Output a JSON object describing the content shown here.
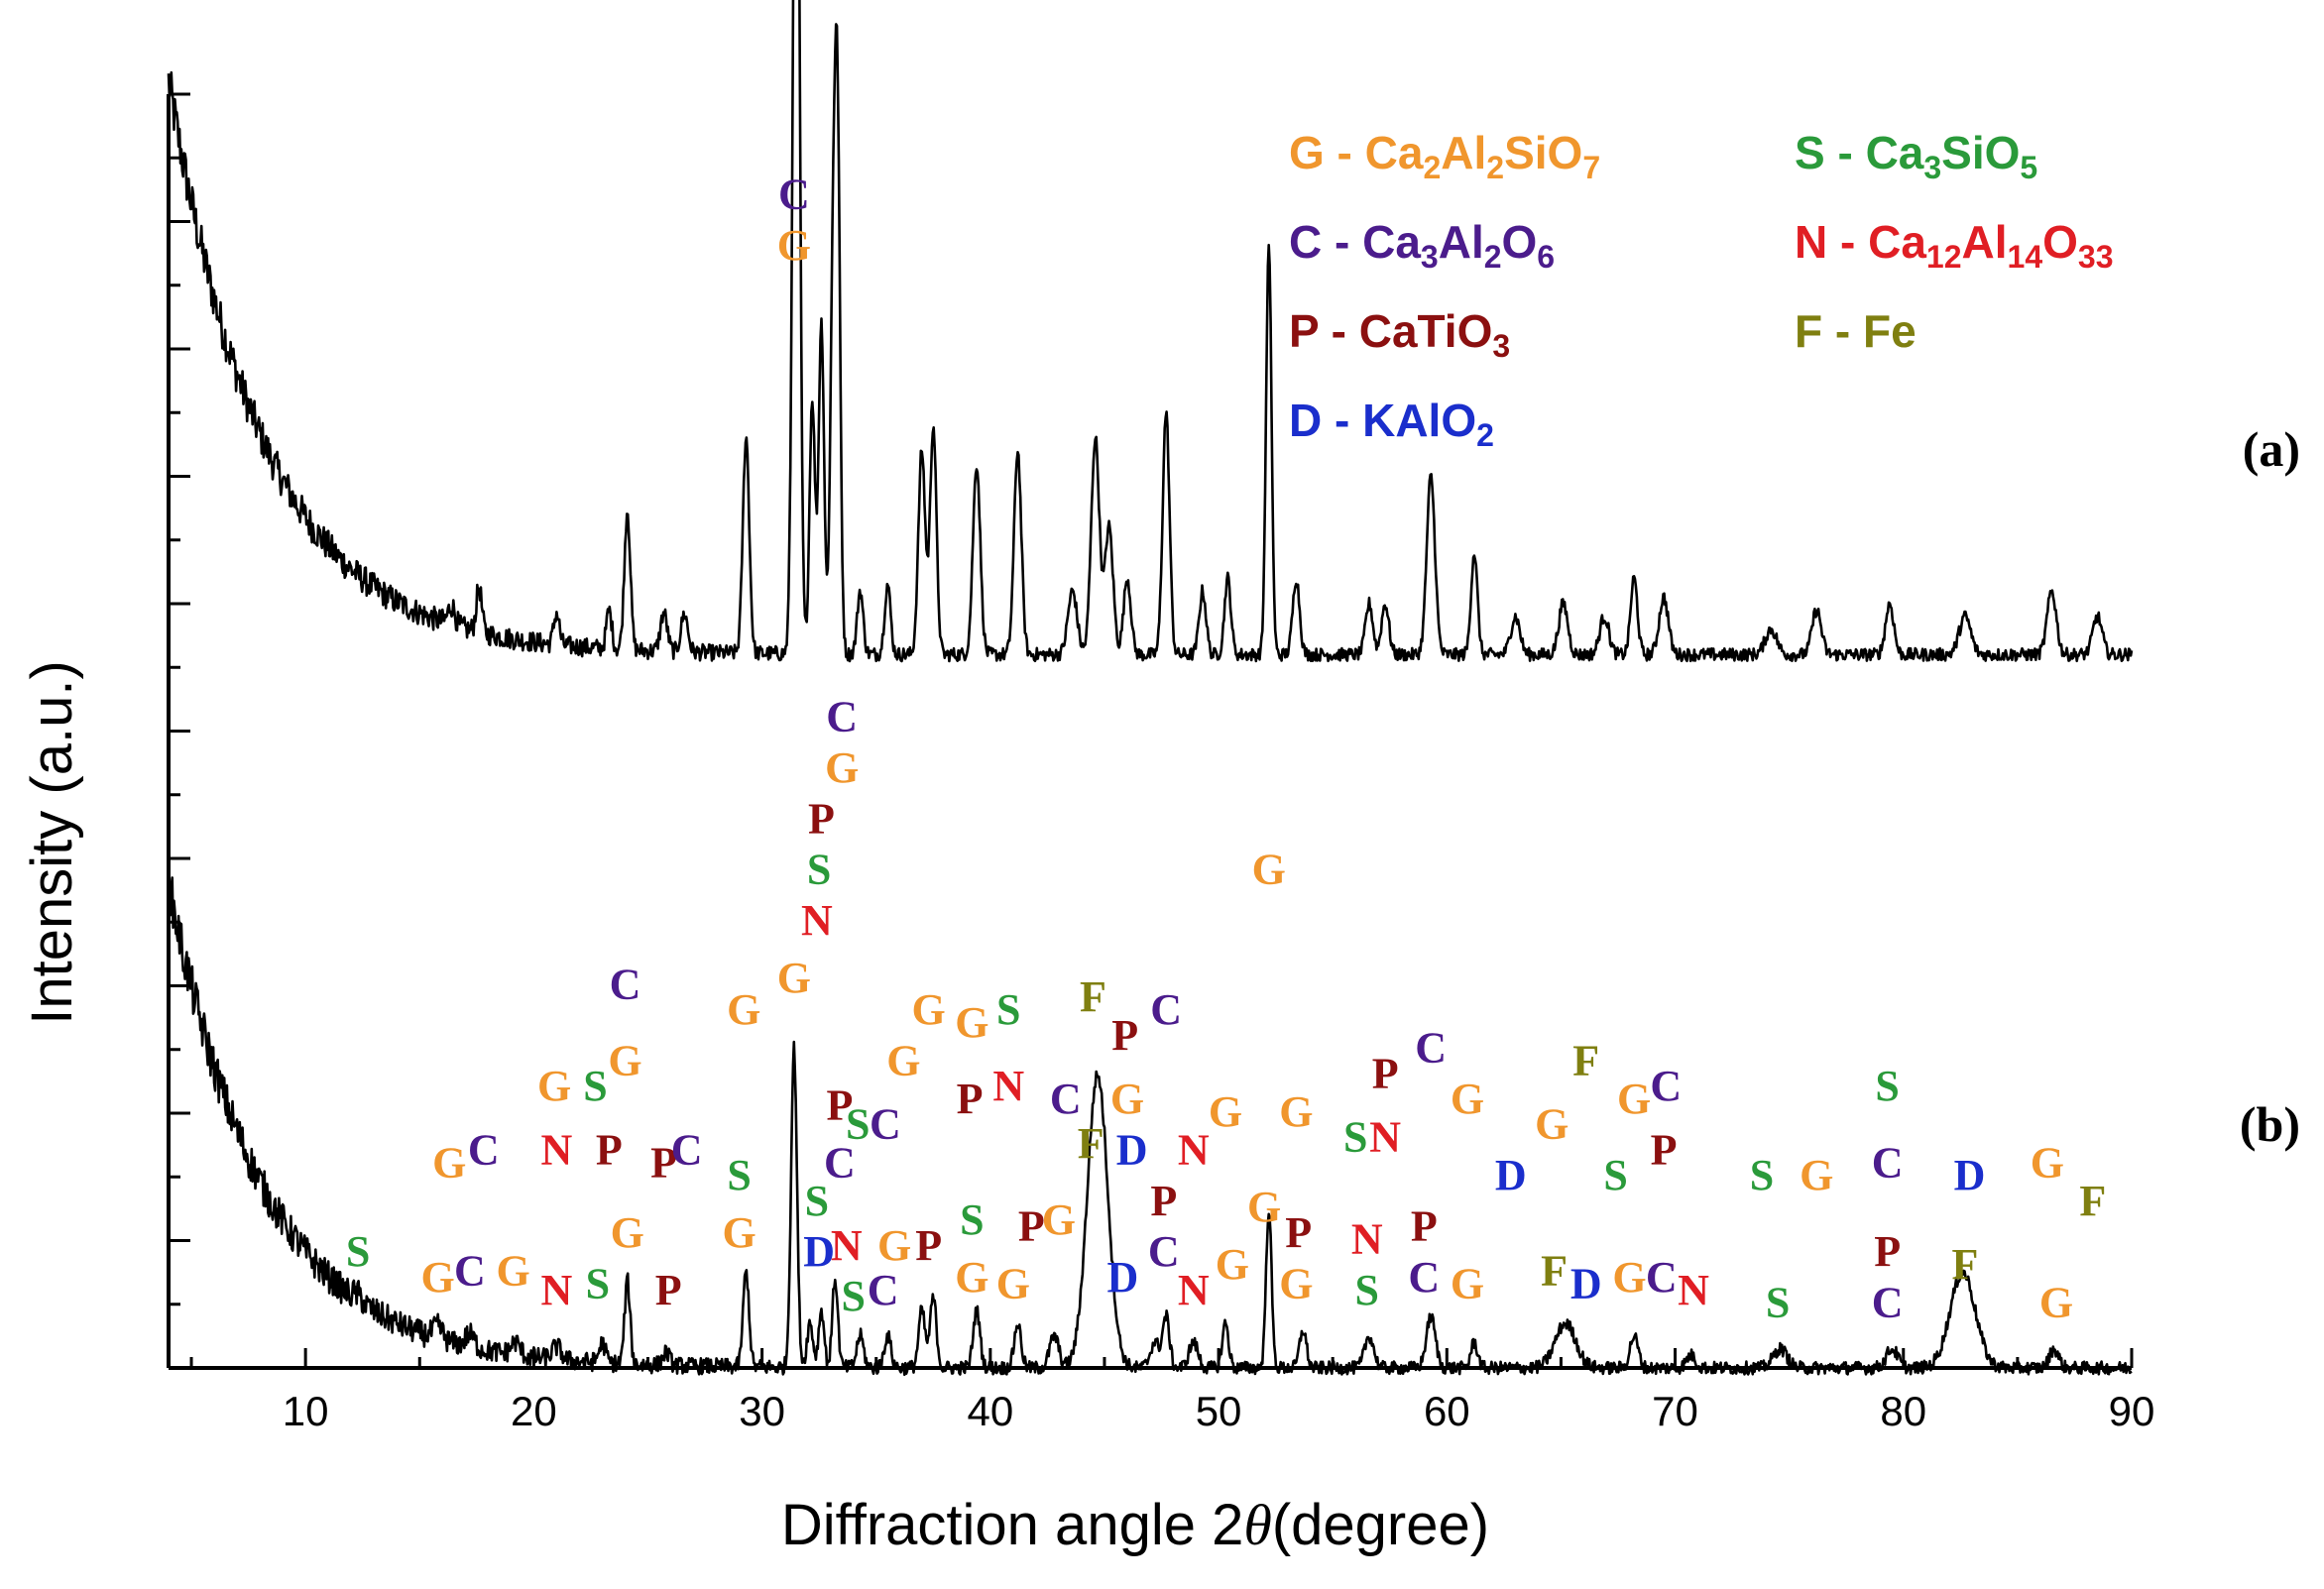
{
  "chart_data": {
    "type": "line",
    "title": "",
    "xlabel": "Diffraction angle 2θ (degree)",
    "xlabel_parts": {
      "prefix": "Diffraction angle 2",
      "theta": "θ",
      "suffix": "(degree)"
    },
    "ylabel": "Intensity (a.u.)",
    "xlim": [
      4,
      90
    ],
    "x_ticks": [
      10,
      20,
      30,
      40,
      50,
      60,
      70,
      80,
      90
    ],
    "y_ticks_labeled": false,
    "grid": false,
    "legend": {
      "placement": "top-right",
      "entries": [
        {
          "code": "G",
          "sep": " - ",
          "parts": [
            [
              "Ca",
              ""
            ],
            [
              "2",
              "sub"
            ],
            [
              "Al",
              ""
            ],
            [
              "2",
              "sub"
            ],
            [
              "SiO",
              ""
            ],
            [
              "7",
              "sub"
            ]
          ],
          "color": "#F0962D"
        },
        {
          "code": "S",
          "sep": " - ",
          "parts": [
            [
              "Ca",
              ""
            ],
            [
              "3",
              "sub"
            ],
            [
              "SiO",
              ""
            ],
            [
              "5",
              "sub"
            ]
          ],
          "color": "#2A9A3A"
        },
        {
          "code": "C",
          "sep": " - ",
          "parts": [
            [
              "Ca",
              ""
            ],
            [
              "3",
              "sub"
            ],
            [
              "Al",
              ""
            ],
            [
              "2",
              "sub"
            ],
            [
              "O",
              ""
            ],
            [
              "6",
              "sub"
            ]
          ],
          "color": "#4B1C8C"
        },
        {
          "code": "N",
          "sep": " - ",
          "parts": [
            [
              "Ca",
              ""
            ],
            [
              "12",
              "sub"
            ],
            [
              "Al",
              ""
            ],
            [
              "14",
              "sub"
            ],
            [
              "O",
              ""
            ],
            [
              "33",
              "sub"
            ]
          ],
          "color": "#E01E24"
        },
        {
          "code": "P",
          "sep": " - ",
          "parts": [
            [
              "CaTiO",
              ""
            ],
            [
              "3",
              "sub"
            ]
          ],
          "color": "#8B1010"
        },
        {
          "code": "F",
          "sep": " - ",
          "parts": [
            [
              "Fe",
              ""
            ]
          ],
          "color": "#7F7F10"
        },
        {
          "code": "D",
          "sep": " - ",
          "parts": [
            [
              "KAlO",
              ""
            ],
            [
              "2",
              "sub"
            ]
          ],
          "color": "#1A2ECC"
        }
      ]
    },
    "colors": {
      "G": "#F0962D",
      "S": "#2A9A3A",
      "C": "#4B1C8C",
      "N": "#E01E24",
      "P": "#8B1010",
      "F": "#7F7F10",
      "D": "#1A2ECC"
    },
    "series": [
      {
        "name": "(a)",
        "baseline": 0.6,
        "offset": 5.0,
        "start_rise": 4.5,
        "peaks": [
          [
            16.4,
            0.15,
            0.15
          ],
          [
            17.6,
            0.35,
            0.12
          ],
          [
            21.0,
            0.25,
            0.12
          ],
          [
            23.3,
            0.3,
            0.12
          ],
          [
            24.1,
            1.1,
            0.13
          ],
          [
            25.7,
            0.3,
            0.15
          ],
          [
            26.6,
            0.3,
            0.15
          ],
          [
            29.3,
            1.7,
            0.14
          ],
          [
            31.5,
            8.4,
            0.14
          ],
          [
            32.2,
            2.0,
            0.12
          ],
          [
            32.6,
            2.6,
            0.12
          ],
          [
            33.1,
            2.6,
            0.12
          ],
          [
            33.3,
            4.1,
            0.12
          ],
          [
            34.3,
            0.5,
            0.13
          ],
          [
            35.5,
            0.55,
            0.13
          ],
          [
            37.0,
            1.6,
            0.15
          ],
          [
            37.5,
            1.8,
            0.14
          ],
          [
            39.4,
            1.5,
            0.16
          ],
          [
            41.2,
            1.6,
            0.16
          ],
          [
            43.6,
            0.5,
            0.2
          ],
          [
            44.6,
            1.7,
            0.18
          ],
          [
            45.2,
            1.0,
            0.18
          ],
          [
            46.0,
            0.6,
            0.16
          ],
          [
            47.7,
            1.9,
            0.15
          ],
          [
            49.3,
            0.5,
            0.15
          ],
          [
            50.4,
            0.6,
            0.14
          ],
          [
            52.2,
            3.2,
            0.12
          ],
          [
            53.4,
            0.6,
            0.15
          ],
          [
            56.6,
            0.4,
            0.16
          ],
          [
            57.3,
            0.4,
            0.16
          ],
          [
            59.3,
            1.4,
            0.18
          ],
          [
            61.2,
            0.8,
            0.14
          ],
          [
            63.0,
            0.3,
            0.2
          ],
          [
            65.1,
            0.4,
            0.2
          ],
          [
            66.9,
            0.3,
            0.2
          ],
          [
            68.2,
            0.6,
            0.15
          ],
          [
            69.5,
            0.45,
            0.2
          ],
          [
            74.2,
            0.2,
            0.25
          ],
          [
            76.2,
            0.35,
            0.2
          ],
          [
            79.4,
            0.4,
            0.18
          ],
          [
            82.7,
            0.3,
            0.25
          ],
          [
            86.5,
            0.5,
            0.2
          ],
          [
            88.5,
            0.3,
            0.2
          ]
        ]
      },
      {
        "name": "(b)",
        "baseline": 0.0,
        "offset": 0.0,
        "start_rise": 3.8,
        "peaks": [
          [
            12.3,
            0.05,
            0.2
          ],
          [
            15.8,
            0.1,
            0.2
          ],
          [
            17.2,
            0.1,
            0.2
          ],
          [
            19.2,
            0.1,
            0.2
          ],
          [
            21.0,
            0.1,
            0.2
          ],
          [
            23.0,
            0.15,
            0.15
          ],
          [
            24.1,
            0.65,
            0.12
          ],
          [
            25.8,
            0.1,
            0.15
          ],
          [
            29.3,
            0.75,
            0.13
          ],
          [
            31.4,
            2.5,
            0.13
          ],
          [
            32.1,
            0.35,
            0.13
          ],
          [
            32.6,
            0.45,
            0.12
          ],
          [
            33.2,
            0.7,
            0.12
          ],
          [
            34.3,
            0.25,
            0.15
          ],
          [
            35.5,
            0.25,
            0.15
          ],
          [
            37.0,
            0.45,
            0.14
          ],
          [
            37.5,
            0.55,
            0.14
          ],
          [
            39.4,
            0.45,
            0.15
          ],
          [
            41.2,
            0.35,
            0.15
          ],
          [
            42.8,
            0.25,
            0.2
          ],
          [
            44.7,
            2.3,
            0.45
          ],
          [
            47.2,
            0.2,
            0.2
          ],
          [
            47.7,
            0.4,
            0.15
          ],
          [
            48.9,
            0.2,
            0.2
          ],
          [
            50.3,
            0.35,
            0.14
          ],
          [
            52.2,
            1.25,
            0.12
          ],
          [
            53.7,
            0.3,
            0.15
          ],
          [
            56.6,
            0.25,
            0.2
          ],
          [
            59.3,
            0.4,
            0.2
          ],
          [
            61.2,
            0.2,
            0.15
          ],
          [
            65.2,
            0.35,
            0.45
          ],
          [
            68.2,
            0.25,
            0.18
          ],
          [
            70.7,
            0.1,
            0.2
          ],
          [
            74.6,
            0.15,
            0.3
          ],
          [
            79.5,
            0.15,
            0.25
          ],
          [
            82.6,
            0.75,
            0.55
          ],
          [
            86.6,
            0.15,
            0.2
          ]
        ]
      }
    ],
    "annotations": [
      {
        "x": 16.3,
        "y": 1.5,
        "t": "G"
      },
      {
        "x": 17.8,
        "y": 1.6,
        "t": "C"
      },
      {
        "x": 21.0,
        "y": 1.6,
        "t": "N"
      },
      {
        "x": 22.7,
        "y": 2.1,
        "t": "S"
      },
      {
        "x": 24.0,
        "y": 2.3,
        "t": "G"
      },
      {
        "x": 23.3,
        "y": 1.6,
        "t": "P"
      },
      {
        "x": 20.9,
        "y": 2.1,
        "t": "G"
      },
      {
        "x": 24.0,
        "y": 2.9,
        "t": "C"
      },
      {
        "x": 25.7,
        "y": 1.5,
        "t": "P"
      },
      {
        "x": 26.7,
        "y": 1.6,
        "t": "C"
      },
      {
        "x": 29.2,
        "y": 2.7,
        "t": "G"
      },
      {
        "x": 31.4,
        "y": 8.7,
        "t": "G"
      },
      {
        "x": 31.4,
        "y": 9.1,
        "t": "C"
      },
      {
        "x": 33.5,
        "y": 4.6,
        "t": "G"
      },
      {
        "x": 33.5,
        "y": 5.0,
        "t": "C"
      },
      {
        "x": 32.6,
        "y": 4.2,
        "t": "P"
      },
      {
        "x": 32.5,
        "y": 3.8,
        "t": "S"
      },
      {
        "x": 32.4,
        "y": 3.4,
        "t": "N"
      },
      {
        "x": 34.2,
        "y": 1.8,
        "t": "S"
      },
      {
        "x": 35.4,
        "y": 1.8,
        "t": "C"
      },
      {
        "x": 36.2,
        "y": 2.3,
        "t": "G"
      },
      {
        "x": 37.3,
        "y": 2.7,
        "t": "G"
      },
      {
        "x": 39.2,
        "y": 2.6,
        "t": "G"
      },
      {
        "x": 40.8,
        "y": 2.7,
        "t": "S"
      },
      {
        "x": 39.1,
        "y": 2.0,
        "t": "P"
      },
      {
        "x": 40.8,
        "y": 2.1,
        "t": "N"
      },
      {
        "x": 43.3,
        "y": 2.0,
        "t": "C"
      },
      {
        "x": 44.5,
        "y": 2.8,
        "t": "F"
      },
      {
        "x": 45.9,
        "y": 2.5,
        "t": "P"
      },
      {
        "x": 47.7,
        "y": 2.7,
        "t": "C"
      },
      {
        "x": 46.0,
        "y": 2.0,
        "t": "G"
      },
      {
        "x": 46.2,
        "y": 1.6,
        "t": "D"
      },
      {
        "x": 48.9,
        "y": 1.6,
        "t": "N"
      },
      {
        "x": 50.3,
        "y": 1.9,
        "t": "G"
      },
      {
        "x": 52.2,
        "y": 3.8,
        "t": "G"
      },
      {
        "x": 53.4,
        "y": 1.9,
        "t": "G"
      },
      {
        "x": 56.0,
        "y": 1.7,
        "t": "S"
      },
      {
        "x": 57.3,
        "y": 2.2,
        "t": "P"
      },
      {
        "x": 57.3,
        "y": 1.7,
        "t": "N"
      },
      {
        "x": 59.3,
        "y": 2.4,
        "t": "C"
      },
      {
        "x": 60.9,
        "y": 2.0,
        "t": "G"
      },
      {
        "x": 62.8,
        "y": 1.4,
        "t": "D"
      },
      {
        "x": 64.6,
        "y": 1.8,
        "t": "G"
      },
      {
        "x": 66.1,
        "y": 2.3,
        "t": "F"
      },
      {
        "x": 67.4,
        "y": 1.4,
        "t": "S"
      },
      {
        "x": 68.2,
        "y": 2.0,
        "t": "G"
      },
      {
        "x": 69.6,
        "y": 2.1,
        "t": "C"
      },
      {
        "x": 69.5,
        "y": 1.6,
        "t": "P"
      },
      {
        "x": 73.8,
        "y": 1.4,
        "t": "S"
      },
      {
        "x": 76.2,
        "y": 1.4,
        "t": "G"
      },
      {
        "x": 79.3,
        "y": 2.1,
        "t": "S"
      },
      {
        "x": 79.3,
        "y": 1.5,
        "t": "C"
      },
      {
        "x": 82.9,
        "y": 1.4,
        "t": "D"
      },
      {
        "x": 86.3,
        "y": 1.5,
        "t": "G"
      },
      {
        "x": 88.3,
        "y": 1.2,
        "t": "F"
      },
      {
        "x": 12.3,
        "y": 0.8,
        "t": "S"
      },
      {
        "x": 15.8,
        "y": 0.6,
        "t": "G"
      },
      {
        "x": 17.2,
        "y": 0.65,
        "t": "C"
      },
      {
        "x": 19.1,
        "y": 0.65,
        "t": "G"
      },
      {
        "x": 21.0,
        "y": 0.5,
        "t": "N"
      },
      {
        "x": 22.8,
        "y": 0.55,
        "t": "S"
      },
      {
        "x": 24.1,
        "y": 0.95,
        "t": "G"
      },
      {
        "x": 25.9,
        "y": 0.5,
        "t": "P"
      },
      {
        "x": 29.0,
        "y": 1.4,
        "t": "S"
      },
      {
        "x": 29.0,
        "y": 0.95,
        "t": "G"
      },
      {
        "x": 31.4,
        "y": 2.95,
        "t": "G"
      },
      {
        "x": 32.4,
        "y": 1.2,
        "t": "S"
      },
      {
        "x": 32.5,
        "y": 0.8,
        "t": "D"
      },
      {
        "x": 33.4,
        "y": 1.5,
        "t": "C"
      },
      {
        "x": 33.4,
        "y": 1.95,
        "t": "P"
      },
      {
        "x": 33.7,
        "y": 0.85,
        "t": "N"
      },
      {
        "x": 34.0,
        "y": 0.45,
        "t": "S"
      },
      {
        "x": 35.3,
        "y": 0.5,
        "t": "C"
      },
      {
        "x": 35.8,
        "y": 0.85,
        "t": "G"
      },
      {
        "x": 37.3,
        "y": 0.85,
        "t": "P"
      },
      {
        "x": 39.2,
        "y": 1.05,
        "t": "S"
      },
      {
        "x": 39.2,
        "y": 0.6,
        "t": "G"
      },
      {
        "x": 41.0,
        "y": 0.55,
        "t": "G"
      },
      {
        "x": 41.8,
        "y": 1.0,
        "t": "P"
      },
      {
        "x": 43.0,
        "y": 1.05,
        "t": "G"
      },
      {
        "x": 44.4,
        "y": 1.65,
        "t": "F"
      },
      {
        "x": 45.8,
        "y": 0.6,
        "t": "D"
      },
      {
        "x": 47.6,
        "y": 1.2,
        "t": "P"
      },
      {
        "x": 47.6,
        "y": 0.8,
        "t": "C"
      },
      {
        "x": 48.9,
        "y": 0.5,
        "t": "N"
      },
      {
        "x": 50.6,
        "y": 0.7,
        "t": "G"
      },
      {
        "x": 52.0,
        "y": 1.15,
        "t": "G"
      },
      {
        "x": 53.5,
        "y": 0.95,
        "t": "P"
      },
      {
        "x": 53.4,
        "y": 0.55,
        "t": "G"
      },
      {
        "x": 56.5,
        "y": 0.9,
        "t": "N"
      },
      {
        "x": 56.5,
        "y": 0.5,
        "t": "S"
      },
      {
        "x": 59.0,
        "y": 1.0,
        "t": "P"
      },
      {
        "x": 59.0,
        "y": 0.6,
        "t": "C"
      },
      {
        "x": 60.9,
        "y": 0.55,
        "t": "G"
      },
      {
        "x": 64.7,
        "y": 0.65,
        "t": "F"
      },
      {
        "x": 66.1,
        "y": 0.55,
        "t": "D"
      },
      {
        "x": 68.0,
        "y": 0.6,
        "t": "G"
      },
      {
        "x": 69.4,
        "y": 0.6,
        "t": "C"
      },
      {
        "x": 70.8,
        "y": 0.5,
        "t": "N"
      },
      {
        "x": 74.5,
        "y": 0.4,
        "t": "S"
      },
      {
        "x": 79.3,
        "y": 0.8,
        "t": "P"
      },
      {
        "x": 79.3,
        "y": 0.4,
        "t": "C"
      },
      {
        "x": 82.7,
        "y": 0.7,
        "t": "F"
      },
      {
        "x": 86.7,
        "y": 0.4,
        "t": "G"
      }
    ],
    "curve_labels": [
      {
        "text": "(a)",
        "y": 2.2
      },
      {
        "text": "(b)",
        "y": 1.9
      }
    ]
  }
}
